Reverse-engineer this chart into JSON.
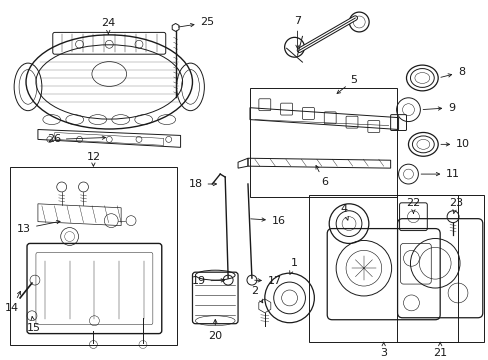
{
  "bg_color": "#ffffff",
  "fig_width": 4.89,
  "fig_height": 3.6,
  "dpi": 100,
  "lc": "#1a1a1a",
  "lw": 0.7,
  "fs": 8.0
}
